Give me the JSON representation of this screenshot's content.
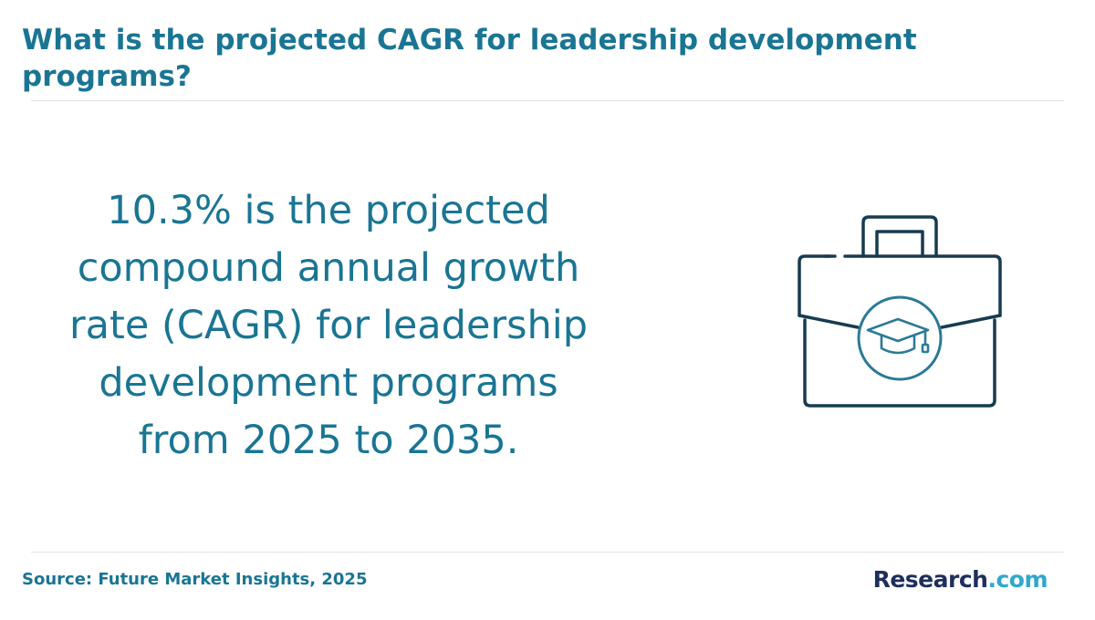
{
  "header": {
    "title": "What is the projected CAGR for leadership development programs?"
  },
  "main": {
    "statement": "10.3% is the projected compound annual growth rate (CAGR) for leadership development programs from 2025 to 2035.",
    "illustration_icon": "briefcase-graduation-cap-icon"
  },
  "footer": {
    "source": "Source: Future Market Insights, 2025",
    "logo": {
      "brand": "Research",
      "tld": ".com"
    }
  },
  "colors": {
    "accent": "#1a7593",
    "icon_stroke": "#173b4f",
    "icon_circle": "#2b7a96",
    "logo_dark": "#1e2f5c",
    "logo_light": "#2fa8cc"
  }
}
